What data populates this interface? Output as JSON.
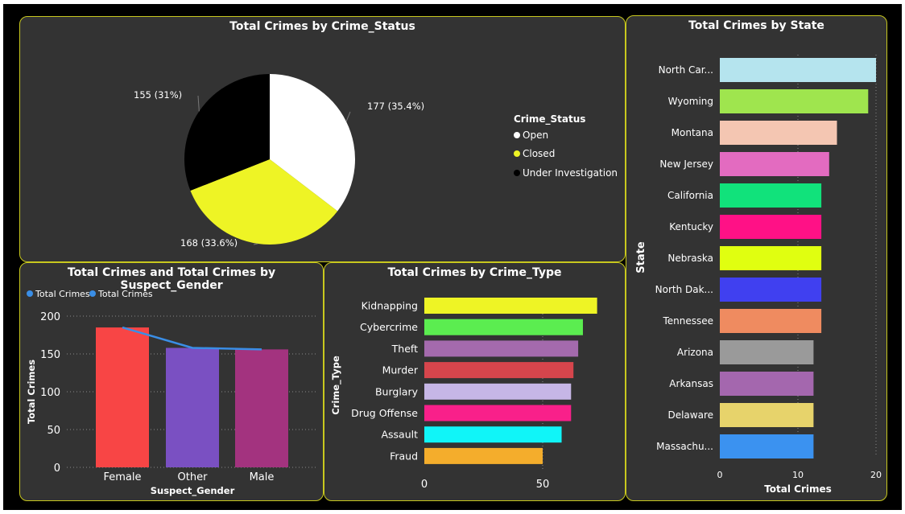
{
  "colors": {
    "panel_bg": "#333333",
    "panel_border": "#c8c81e",
    "text": "#ffffff",
    "grid": "#8a8a8a",
    "line": "#3a8ee6"
  },
  "chart_data": [
    {
      "id": "status",
      "type": "pie",
      "title": "Total Crimes by Crime_Status",
      "legend_title": "Crime_Status",
      "slices": [
        {
          "label": "Open",
          "value": 177,
          "data_label": "177 (35.4%)",
          "color": "#ffffff"
        },
        {
          "label": "Closed",
          "value": 168,
          "data_label": "168 (33.6%)",
          "color": "#eef425"
        },
        {
          "label": "Under Investigation",
          "value": 155,
          "data_label": "155 (31%)",
          "color": "#000000"
        }
      ]
    },
    {
      "id": "state",
      "type": "bar",
      "orientation": "horizontal",
      "title": "Total Crimes by State",
      "xlabel": "Total Crimes",
      "ylabel": "State",
      "xlim": [
        0,
        20
      ],
      "xticks": [
        "0",
        "10",
        "20"
      ],
      "categories": [
        "North Car...",
        "Wyoming",
        "Montana",
        "New Jersey",
        "California",
        "Kentucky",
        "Nebraska",
        "North Dak...",
        "Tennessee",
        "Arizona",
        "Arkansas",
        "Delaware",
        "Massachu..."
      ],
      "values": [
        20,
        19,
        15,
        14,
        13,
        13,
        13,
        13,
        13,
        12,
        12,
        12,
        12
      ],
      "colors": [
        "#b5e4ee",
        "#9fe54e",
        "#f4c6b2",
        "#e36bc0",
        "#11e27b",
        "#ff1186",
        "#e0ff10",
        "#4040f0",
        "#ef8b60",
        "#9a9a9a",
        "#a467ae",
        "#e7d36b",
        "#3b92f0"
      ]
    },
    {
      "id": "gender",
      "type": "bar",
      "title": "Total Crimes and Total Crimes by Suspect_Gender",
      "xlabel": "Suspect_Gender",
      "ylabel": "Total Crimes",
      "ylim": [
        0,
        200
      ],
      "yticks": [
        "0",
        "50",
        "100",
        "150",
        "200"
      ],
      "legend": [
        "Total Crimes",
        "Total Crimes"
      ],
      "categories": [
        "Female",
        "Other",
        "Male"
      ],
      "series": [
        {
          "name": "Total Crimes",
          "kind": "bar",
          "values": [
            185,
            158,
            156
          ]
        },
        {
          "name": "Total Crimes",
          "kind": "line",
          "values": [
            185,
            158,
            156
          ]
        }
      ],
      "colors": [
        "#f84545",
        "#7a50c2",
        "#a3337f"
      ]
    },
    {
      "id": "type",
      "type": "bar",
      "orientation": "horizontal",
      "title": "Total Crimes by Crime_Type",
      "xlabel": "",
      "ylabel": "Crime_Type",
      "xlim": [
        0,
        75
      ],
      "xticks": [
        "0",
        "50"
      ],
      "categories": [
        "Kidnapping",
        "Cybercrime",
        "Theft",
        "Murder",
        "Burglary",
        "Drug Offense",
        "Assault",
        "Fraud"
      ],
      "values": [
        73,
        67,
        65,
        63,
        62,
        62,
        58,
        50
      ],
      "colors": [
        "#eef425",
        "#5bed50",
        "#a46aad",
        "#d6454c",
        "#c6b6e6",
        "#f9208a",
        "#10f5f8",
        "#f4ad2c"
      ]
    }
  ]
}
